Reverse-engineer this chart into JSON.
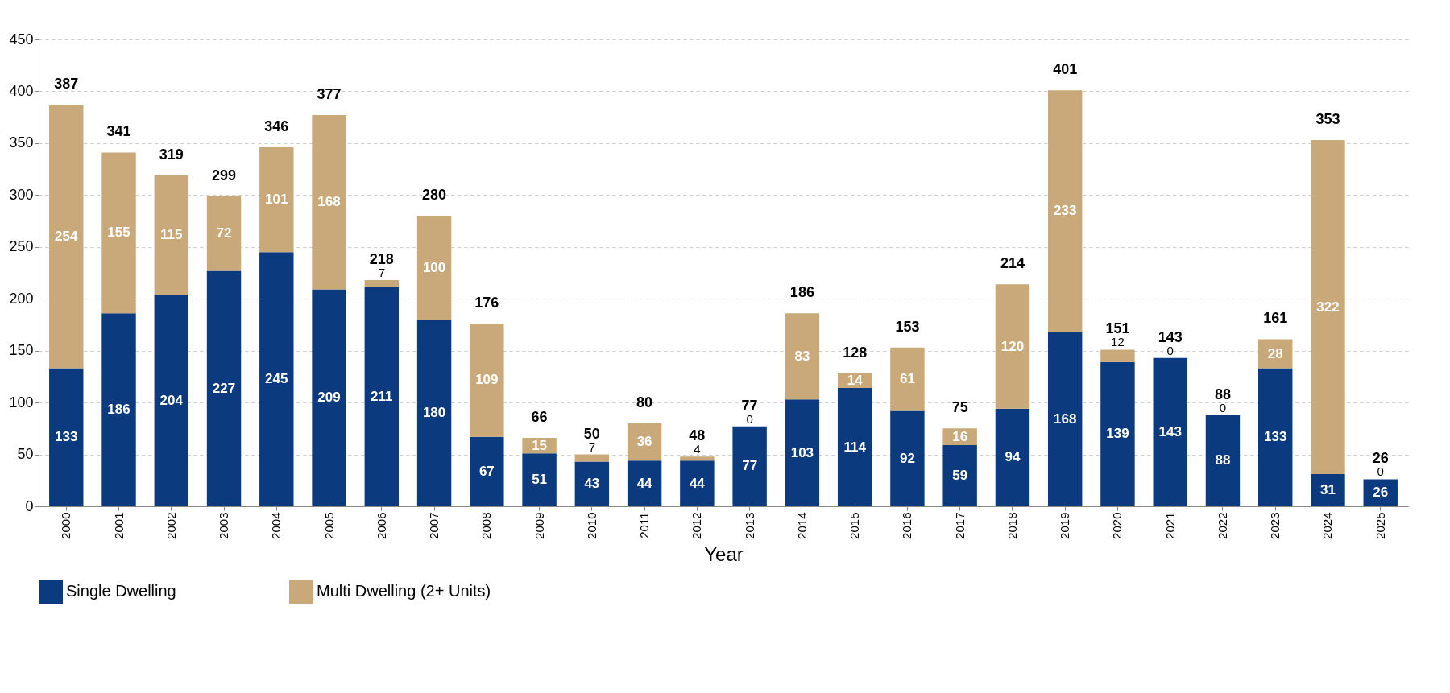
{
  "chart_data": {
    "type": "bar",
    "stacked": true,
    "xlabel": "Year",
    "categories": [
      "2000",
      "2001",
      "2002",
      "2003",
      "2004",
      "2005",
      "2006",
      "2007",
      "2008",
      "2009",
      "2010",
      "2011",
      "2012",
      "2013",
      "2014",
      "2015",
      "2016",
      "2017",
      "2018",
      "2019",
      "2020",
      "2021",
      "2022",
      "2023",
      "2024",
      "2025"
    ],
    "series": [
      {
        "name": "Single Dwelling",
        "color": "#0b3a7e",
        "values": [
          133,
          186,
          204,
          227,
          245,
          209,
          211,
          180,
          67,
          51,
          43,
          44,
          44,
          77,
          103,
          114,
          92,
          59,
          94,
          168,
          139,
          143,
          88,
          133,
          31,
          26
        ]
      },
      {
        "name": "Multi Dwelling (2+ Units)",
        "color": "#c9a97a",
        "values": [
          254,
          155,
          115,
          72,
          101,
          168,
          7,
          100,
          109,
          15,
          7,
          36,
          4,
          0,
          83,
          14,
          61,
          16,
          120,
          233,
          12,
          0,
          0,
          28,
          322,
          0
        ]
      }
    ],
    "totals": [
      "387",
      "341",
      "319",
      "299",
      "346",
      "377",
      "218",
      "280",
      "176",
      "66",
      "50",
      "80",
      "48",
      "77",
      "186",
      "128",
      "153",
      "75",
      "214",
      "401",
      "151",
      "143",
      "88",
      "161",
      "353",
      "26"
    ],
    "data_labels": true,
    "ylim": [
      0,
      450
    ],
    "yticks": [
      0,
      50,
      100,
      150,
      200,
      250,
      300,
      350,
      400,
      450
    ],
    "grid": "y",
    "legend": "bottom"
  }
}
